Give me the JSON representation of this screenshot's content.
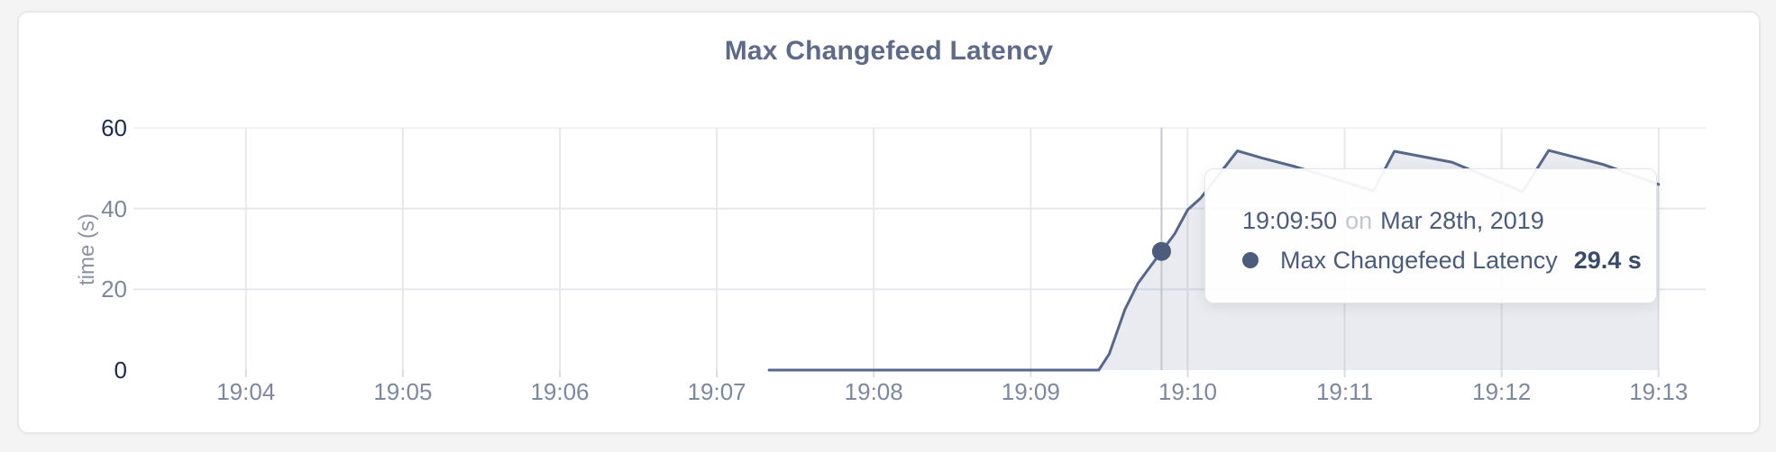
{
  "card": {
    "title": "Max Changefeed Latency"
  },
  "tooltip": {
    "time": "19:09:50",
    "connector": "on",
    "date": "Mar 28th, 2019",
    "series_label": "Max Changefeed Latency",
    "value": "29.4 s"
  },
  "chart_data": {
    "type": "area",
    "title": "Max Changefeed Latency",
    "xlabel": "",
    "ylabel": "time (s)",
    "ylim": [
      0,
      60
    ],
    "grid": true,
    "legend_position": "none",
    "x_domain": [
      "19:03:17",
      "19:13:18"
    ],
    "x_ticks": [
      "19:04",
      "19:05",
      "19:06",
      "19:07",
      "19:08",
      "19:09",
      "19:10",
      "19:11",
      "19:12",
      "19:13"
    ],
    "y_ticks": [
      {
        "value": 0,
        "label": "0",
        "strong": true
      },
      {
        "value": 20,
        "label": "20",
        "strong": false
      },
      {
        "value": 40,
        "label": "40",
        "strong": false
      },
      {
        "value": 60,
        "label": "60",
        "strong": true
      }
    ],
    "series": [
      {
        "name": "Max Changefeed Latency",
        "unit": "s",
        "points": [
          [
            "19:07:20",
            0
          ],
          [
            "19:08:00",
            0
          ],
          [
            "19:09:00",
            0
          ],
          [
            "19:09:26",
            0
          ],
          [
            "19:09:30",
            4
          ],
          [
            "19:09:36",
            15
          ],
          [
            "19:09:41",
            21.5
          ],
          [
            "19:09:50",
            29.4
          ],
          [
            "19:09:55",
            33.7
          ],
          [
            "19:10:00",
            39.7
          ],
          [
            "19:10:05",
            42.6
          ],
          [
            "19:10:12",
            48.5
          ],
          [
            "19:10:19",
            54.3
          ],
          [
            "19:10:28",
            52.6
          ],
          [
            "19:10:41",
            50.4
          ],
          [
            "19:11:11",
            44.4
          ],
          [
            "19:11:19",
            54.2
          ],
          [
            "19:11:41",
            51.5
          ],
          [
            "19:12:08",
            44.2
          ],
          [
            "19:12:18",
            54.4
          ],
          [
            "19:12:39",
            50.9
          ],
          [
            "19:13:00",
            46
          ]
        ]
      }
    ],
    "hover": {
      "time": "19:09:50",
      "value": 29.4,
      "series": "Max Changefeed Latency"
    },
    "colors": {
      "line": "#56678c",
      "area": "rgba(86,103,140,0.13)",
      "grid": "#e6e8ec",
      "grid_top": "#f0f1f4",
      "tick_stub": "#dadce2",
      "hover_line": "#c3c6cd",
      "hover_dot": "#4d5c7d",
      "tick_label": "#7c87a0",
      "tick_label_strong": "#1c2b4e",
      "title": "#5e6b88",
      "axis_title": "#8b93a3"
    }
  }
}
